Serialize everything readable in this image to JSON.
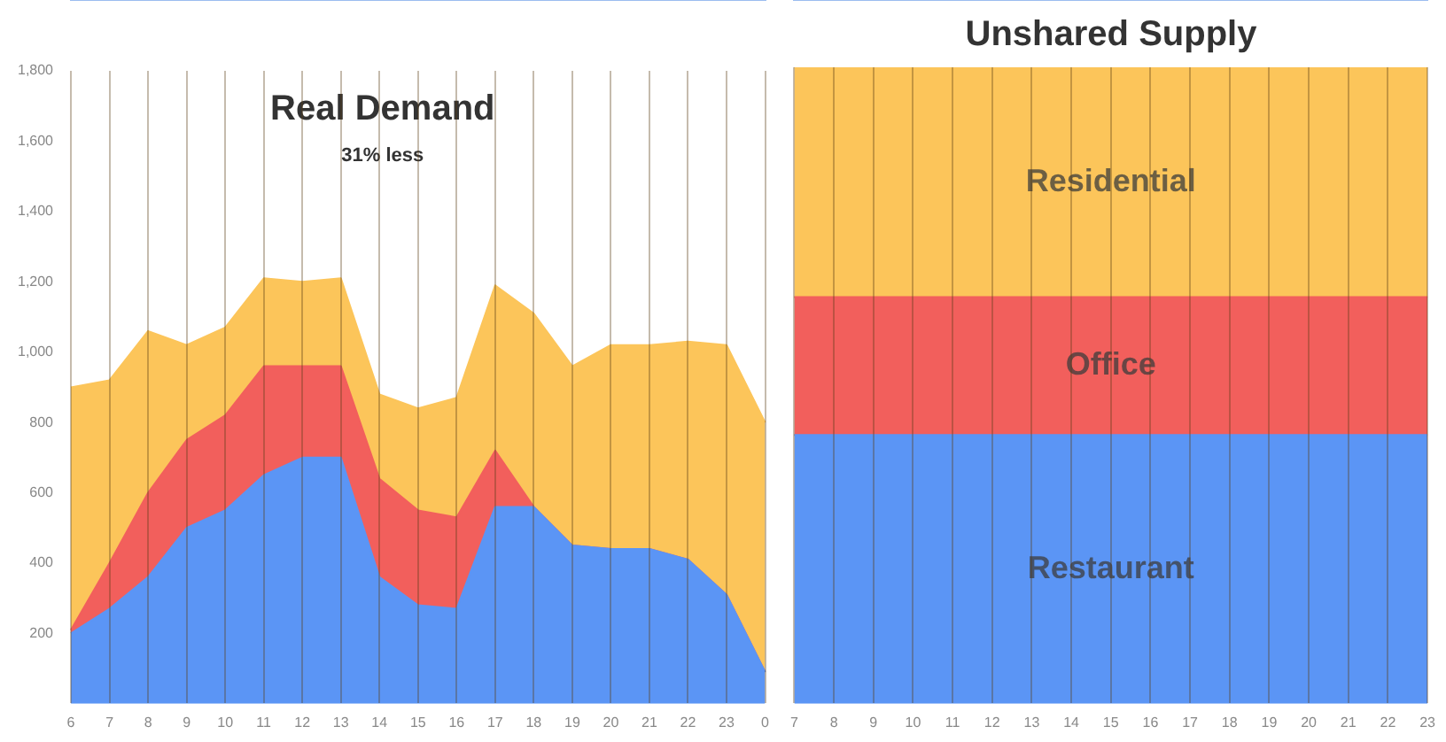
{
  "chart_data": [
    {
      "type": "area",
      "title": "Real Demand",
      "subtitle": "31% less",
      "stacked": true,
      "grid": "x",
      "legend": false,
      "categories": [
        "6",
        "7",
        "8",
        "9",
        "10",
        "11",
        "12",
        "13",
        "14",
        "15",
        "16",
        "17",
        "18",
        "19",
        "20",
        "21",
        "22",
        "23",
        "0"
      ],
      "ylim": [
        0,
        1800
      ],
      "yticks": [
        {
          "value": 200,
          "label": "200"
        },
        {
          "value": 400,
          "label": "400"
        },
        {
          "value": 600,
          "label": "600"
        },
        {
          "value": 800,
          "label": "800"
        },
        {
          "value": 1000,
          "label": "1,000"
        },
        {
          "value": 1200,
          "label": "1,200"
        },
        {
          "value": 1400,
          "label": "1,400"
        },
        {
          "value": 1600,
          "label": "1,600"
        },
        {
          "value": 1800,
          "label": "1,800"
        }
      ],
      "series": [
        {
          "color": "#5b95f5",
          "values": [
            200,
            270,
            360,
            500,
            550,
            650,
            700,
            700,
            360,
            280,
            270,
            560,
            560,
            450,
            440,
            440,
            410,
            310,
            90
          ]
        },
        {
          "color": "#f25f5c",
          "values": [
            10,
            130,
            240,
            250,
            270,
            310,
            260,
            260,
            280,
            270,
            260,
            160,
            0,
            0,
            0,
            0,
            0,
            0,
            0
          ]
        },
        {
          "color": "#fcc55a",
          "values": [
            690,
            520,
            460,
            270,
            250,
            250,
            240,
            250,
            240,
            290,
            340,
            470,
            550,
            510,
            580,
            580,
            620,
            710,
            710
          ]
        }
      ]
    },
    {
      "type": "area",
      "title": "Unshared Supply",
      "stacked": true,
      "grid": "x",
      "legend": false,
      "tick_labels": "x",
      "categories": [
        "7",
        "8",
        "9",
        "10",
        "11",
        "12",
        "13",
        "14",
        "15",
        "16",
        "17",
        "18",
        "19",
        "20",
        "21",
        "22",
        "23"
      ],
      "ylim": [
        0,
        1800
      ],
      "series": [
        {
          "name": "Restaurant",
          "color": "#5b95f5",
          "values": [
            760,
            760,
            760,
            760,
            760,
            760,
            760,
            760,
            760,
            760,
            760,
            760,
            760,
            760,
            760,
            760,
            760
          ]
        },
        {
          "name": "Office",
          "color": "#f25f5c",
          "values": [
            390,
            390,
            390,
            390,
            390,
            390,
            390,
            390,
            390,
            390,
            390,
            390,
            390,
            390,
            390,
            390,
            390
          ]
        },
        {
          "name": "Residential",
          "color": "#fcc55a",
          "values": [
            650,
            650,
            650,
            650,
            650,
            650,
            650,
            650,
            650,
            650,
            650,
            650,
            650,
            650,
            650,
            650,
            650
          ]
        }
      ]
    }
  ]
}
